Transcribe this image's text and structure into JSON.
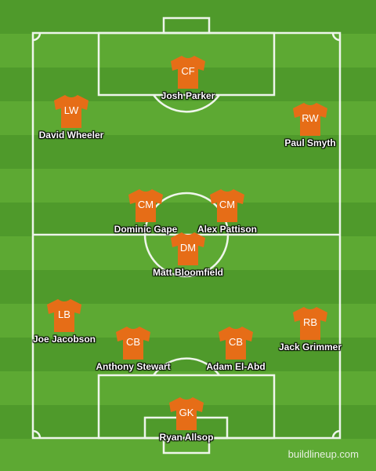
{
  "formation": {
    "players": [
      {
        "position": "CF",
        "name": "Josh Parker"
      },
      {
        "position": "LW",
        "name": "David Wheeler"
      },
      {
        "position": "RW",
        "name": "Paul Smyth"
      },
      {
        "position": "CM",
        "name": "Dominic Gape"
      },
      {
        "position": "CM",
        "name": "Alex Pattison"
      },
      {
        "position": "DM",
        "name": "Matt Bloomfield"
      },
      {
        "position": "LB",
        "name": "Joe Jacobson"
      },
      {
        "position": "CB",
        "name": "Anthony Stewart"
      },
      {
        "position": "CB",
        "name": "Adam El-Abd"
      },
      {
        "position": "RB",
        "name": "Jack Grimmer"
      },
      {
        "position": "GK",
        "name": "Ryan Allsop"
      }
    ]
  },
  "colors": {
    "shirt": "#e66d17",
    "pitch_dark": "#4f9a2b",
    "pitch_light": "#5da933",
    "lines": "#ffffff"
  },
  "watermark": "buildlineup.com"
}
